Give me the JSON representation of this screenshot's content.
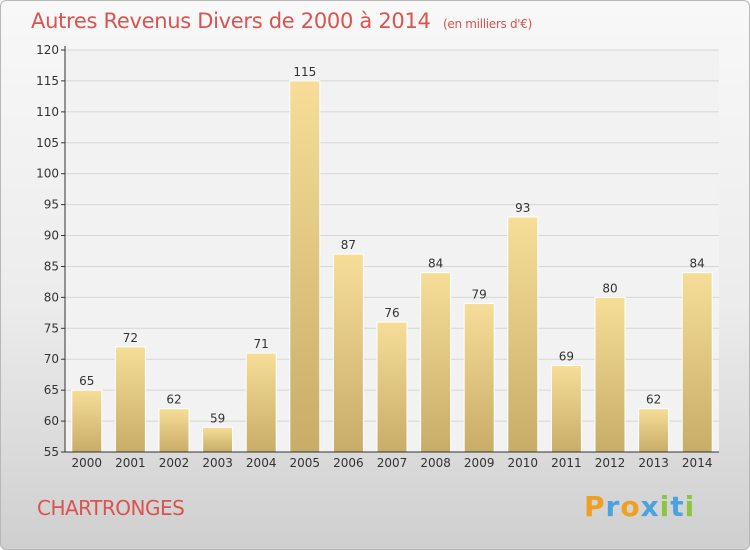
{
  "header": {
    "title": "Autres Revenus Divers de 2000 à 2014",
    "unit": "(en milliers d'€)"
  },
  "footer": {
    "commune": "CHARTRONGES",
    "logo": [
      "P",
      "r",
      "o",
      "x",
      "i",
      "t",
      "i"
    ]
  },
  "colors": {
    "title": "#d9534f",
    "bar_light": "#f6dd98",
    "bar_dark": "#c7ad68",
    "grid": "#d6d6d6",
    "axis": "#333333"
  },
  "chart_data": {
    "type": "bar",
    "categories": [
      "2000",
      "2001",
      "2002",
      "2003",
      "2004",
      "2005",
      "2006",
      "2007",
      "2008",
      "2009",
      "2010",
      "2011",
      "2012",
      "2013",
      "2014"
    ],
    "values": [
      65,
      72,
      62,
      59,
      71,
      115,
      87,
      76,
      84,
      79,
      93,
      69,
      80,
      62,
      84
    ],
    "ylim": [
      55,
      120
    ],
    "yticks": [
      55,
      60,
      65,
      70,
      75,
      80,
      85,
      90,
      95,
      100,
      105,
      110,
      115,
      120
    ],
    "grid": true,
    "data_labels": true
  }
}
